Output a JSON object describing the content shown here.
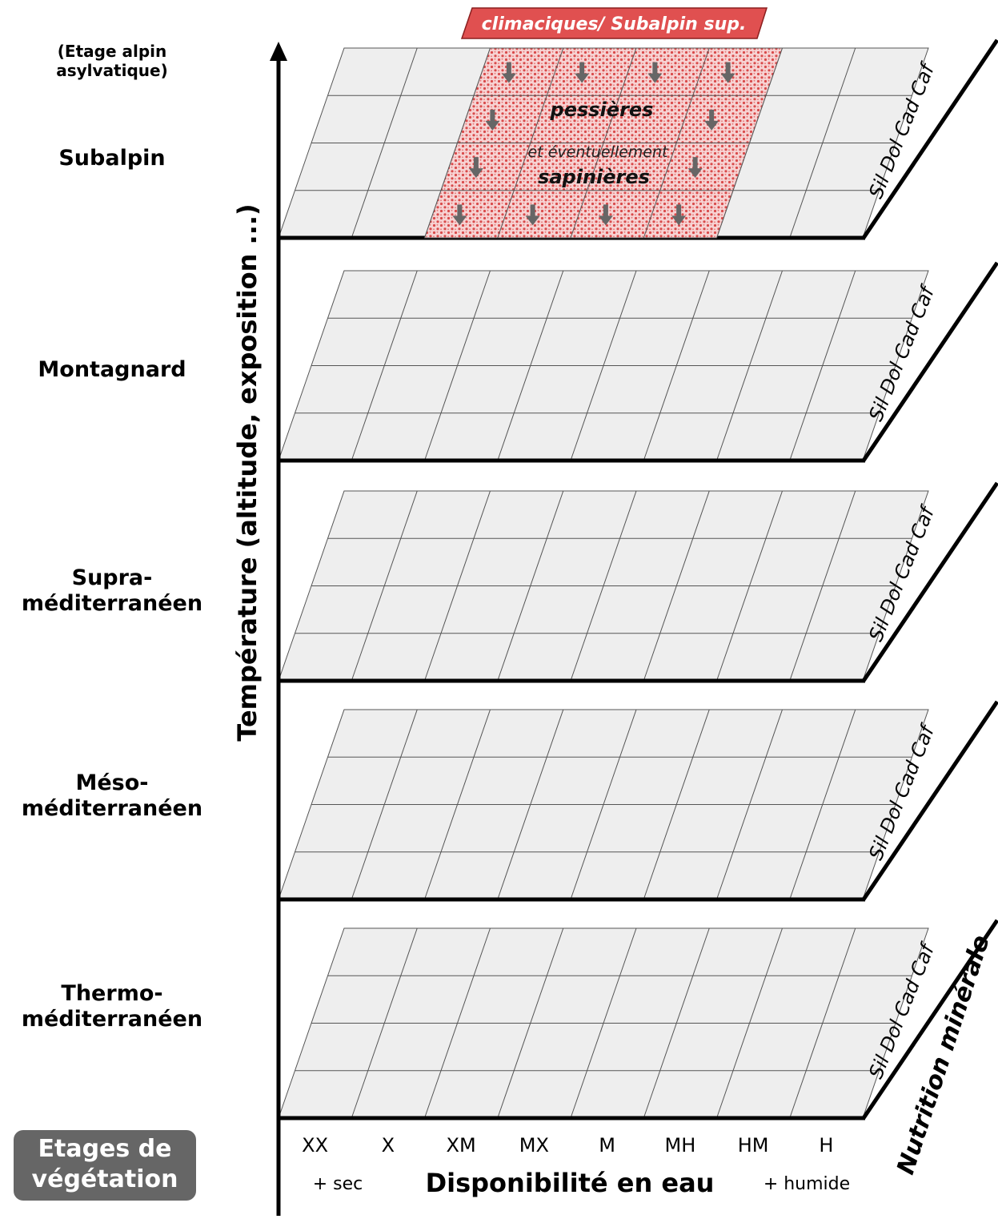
{
  "y_axis_title": "Température (altitude, exposition ...)",
  "x_axis_title": "Disponibilité en eau",
  "x_left_note": "+ sec",
  "x_right_note": "+ humide",
  "z_axis_title": "Nutrition minérale",
  "moisture_classes": [
    "XX",
    "X",
    "XM",
    "MX",
    "M",
    "MH",
    "HM",
    "H"
  ],
  "nutrition_classes": [
    "Sil",
    "Dol",
    "Cad",
    "Caf"
  ],
  "etages": [
    {
      "lines": [
        "(Etage alpin",
        "asylvatique)"
      ]
    },
    {
      "lines": [
        "Subalpin"
      ]
    },
    {
      "lines": [
        "Montagnard"
      ]
    },
    {
      "lines": [
        "Supra-",
        "méditerranéen"
      ]
    },
    {
      "lines": [
        "Méso-",
        "méditerranéen"
      ]
    },
    {
      "lines": [
        "Thermo-",
        "méditerranéen"
      ]
    }
  ],
  "badge": {
    "lines": [
      "Etages de",
      "végétation"
    ]
  },
  "banner": "climaciques/ Subalpin sup.",
  "zone_labels": {
    "main": "pessières",
    "connector": "et éventuellement",
    "secondary": "sapinières"
  },
  "highlight": {
    "level": "Subalpin",
    "moisture_from": "XM",
    "moisture_to": "HM"
  },
  "colors": {
    "cell_fill": "#eeeeee",
    "grid_line": "#555555",
    "axis": "#000000",
    "highlight_fill": "#f5c6c6",
    "highlight_dots": "#d94a4a",
    "banner_fill": "#e05050",
    "arrow": "#666666",
    "badge_fill": "#666666"
  }
}
